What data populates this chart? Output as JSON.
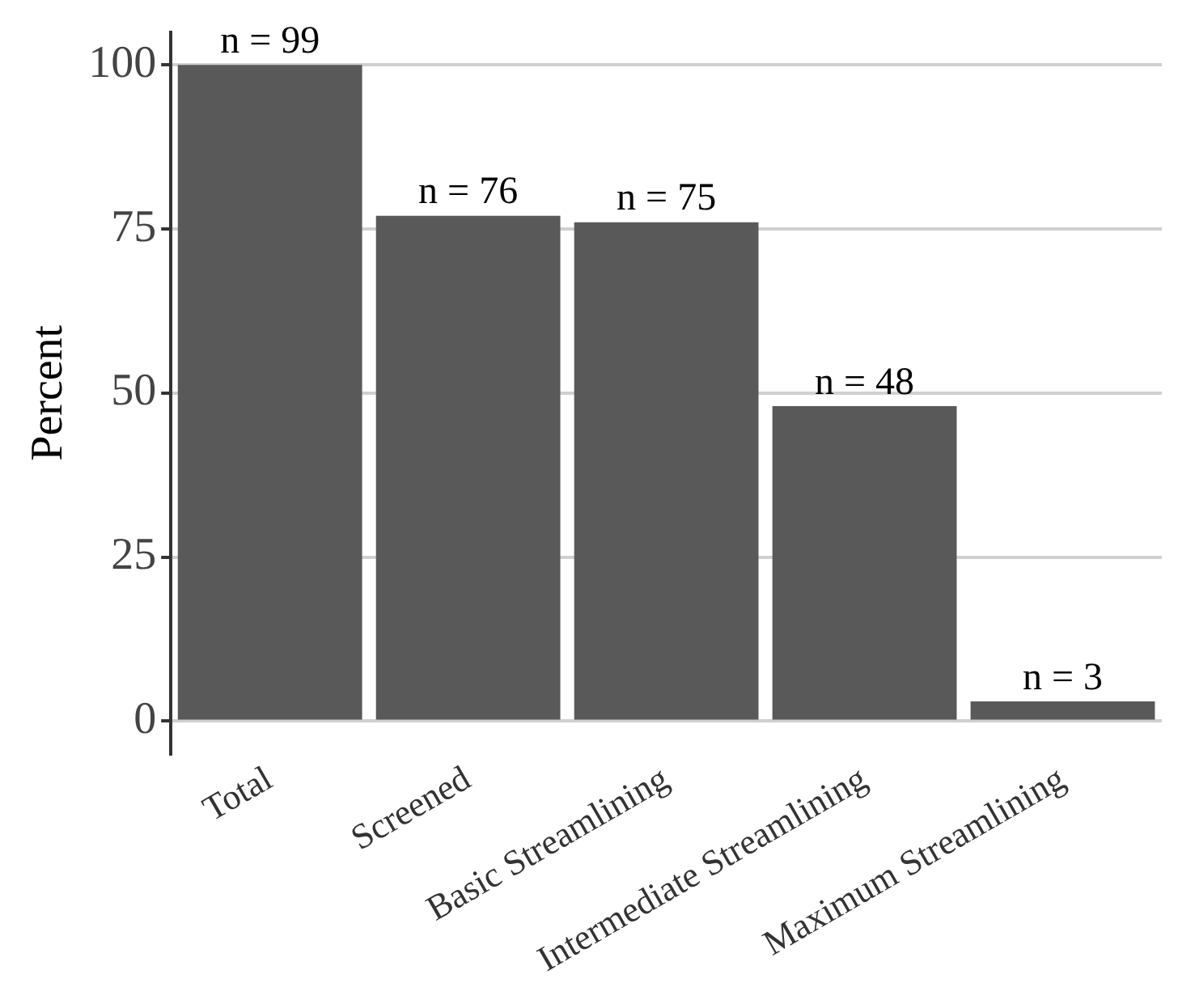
{
  "chart_data": {
    "type": "bar",
    "ylabel": "Percent",
    "categories": [
      "Total",
      "Screened",
      "Basic Streamlining",
      "Intermediate Streamlining",
      "Maximum Streamlining"
    ],
    "values": [
      100,
      77,
      76,
      48,
      3
    ],
    "color": "#595959",
    "annotations": [
      {
        "text": "n = 99",
        "x": "Total",
        "y": 100
      },
      {
        "text": "n = 76",
        "x": "Screened",
        "y": 77
      },
      {
        "text": "n = 75",
        "x": "Basic Streamlining",
        "y": 76
      },
      {
        "text": "n = 48",
        "x": "Intermediate Streamlining",
        "y": 48
      },
      {
        "text": "n = 3",
        "x": "Maximum Streamlining",
        "y": 3
      }
    ],
    "ylim": [
      -5,
      105
    ],
    "yticks": [
      0,
      25,
      50,
      75,
      100
    ],
    "grid": "y",
    "legend": false
  }
}
